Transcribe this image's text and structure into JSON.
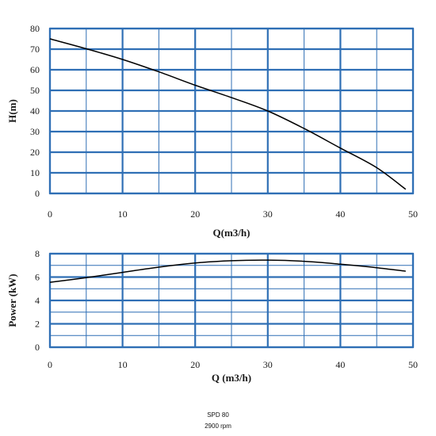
{
  "chart_data": [
    {
      "type": "line",
      "title": "",
      "xlabel": "Q(m3/h)",
      "ylabel": "H(m)",
      "xlim": [
        0,
        50
      ],
      "ylim": [
        0,
        80
      ],
      "x_ticks": [
        "0",
        "10",
        "20",
        "30",
        "40",
        "50"
      ],
      "y_ticks": [
        "0",
        "10",
        "20",
        "30",
        "40",
        "50",
        "60",
        "70",
        "80"
      ],
      "grid": true,
      "series": [
        {
          "x": [
            0,
            5,
            10,
            15,
            20,
            25,
            30,
            35,
            40,
            45,
            49
          ],
          "y": [
            75,
            70.2,
            65,
            59,
            52.5,
            46.5,
            40,
            31.5,
            22,
            12.5,
            2
          ]
        }
      ]
    },
    {
      "type": "line",
      "title": "",
      "xlabel": "Q (m3/h)",
      "ylabel": "Power (kW)",
      "xlim": [
        0,
        50
      ],
      "ylim": [
        0,
        8
      ],
      "x_ticks": [
        "0",
        "10",
        "20",
        "30",
        "40",
        "50"
      ],
      "y_ticks": [
        "0",
        "2",
        "4",
        "6",
        "8"
      ],
      "grid": true,
      "series": [
        {
          "x": [
            0,
            5,
            10,
            15,
            20,
            25,
            30,
            35,
            40,
            45,
            49
          ],
          "y": [
            5.55,
            5.95,
            6.4,
            6.85,
            7.2,
            7.4,
            7.45,
            7.35,
            7.1,
            6.8,
            6.5
          ]
        }
      ]
    }
  ],
  "caption": {
    "model": "SPD 80",
    "speed": "2900 rpm"
  },
  "colors": {
    "grid": "#2f6fb5",
    "curve": "#000000"
  }
}
